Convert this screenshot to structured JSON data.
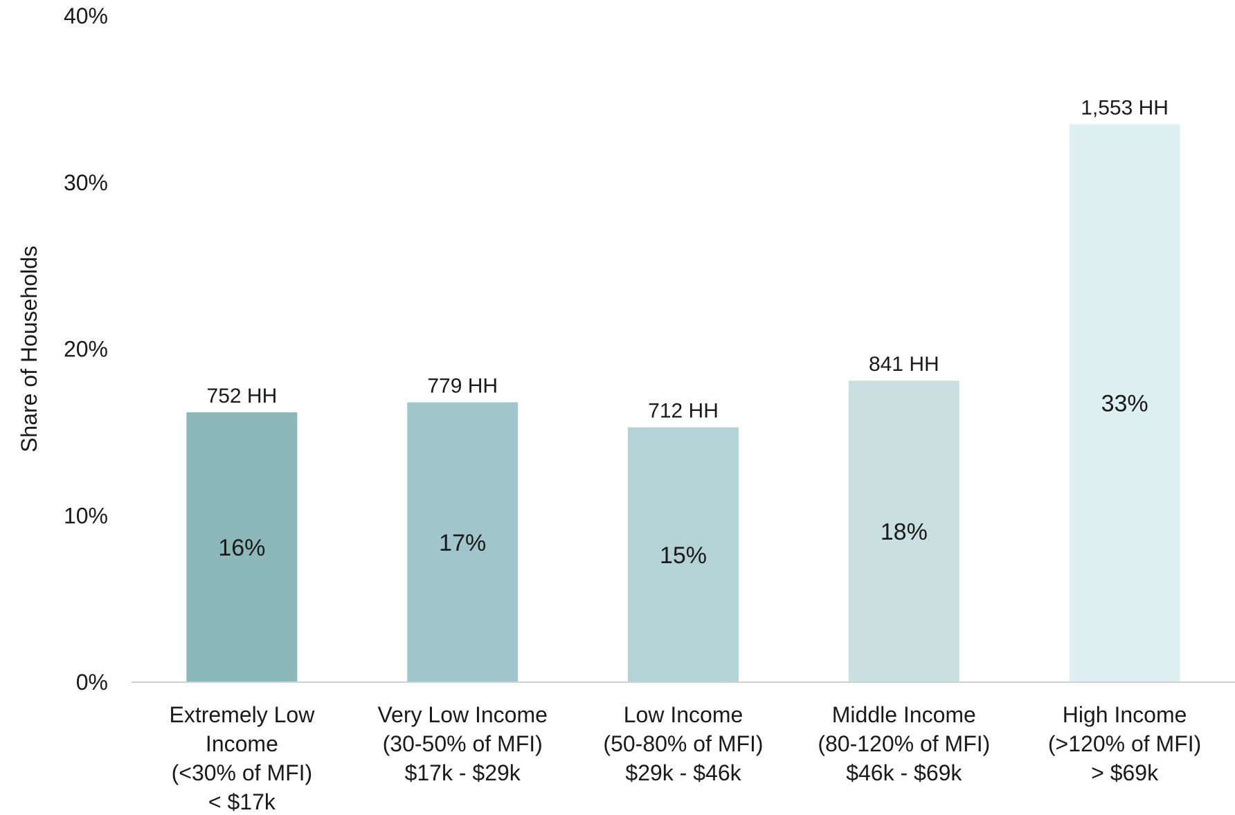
{
  "chart_data": {
    "type": "bar",
    "title": "",
    "xlabel": "",
    "ylabel": "Share of Households",
    "ylim": [
      0,
      40
    ],
    "yticks": [
      "0%",
      "10%",
      "20%",
      "30%",
      "40%"
    ],
    "ytick_values": [
      0,
      10,
      20,
      30,
      40
    ],
    "grid": false,
    "legend": "none",
    "categories": [
      [
        "Extremely Low",
        "Income",
        "(<30% of MFI)",
        "< $17k"
      ],
      [
        "Very Low Income",
        "(30-50% of MFI)",
        "$17k - $29k"
      ],
      [
        "Low Income",
        "(50-80% of MFI)",
        "$29k - $46k"
      ],
      [
        "Middle Income",
        "(80-120% of MFI)",
        "$46k - $69k"
      ],
      [
        "High Income",
        "(>120% of MFI)",
        "> $69k"
      ]
    ],
    "values": [
      16.2,
      16.8,
      15.3,
      18.1,
      33.5
    ],
    "value_labels": [
      "16%",
      "17%",
      "15%",
      "18%",
      "33%"
    ],
    "household_labels": [
      "752 HH",
      "779 HH",
      "712 HH",
      "841 HH",
      "1,553 HH"
    ],
    "colors": [
      "#8db8ba",
      "#a0c5ca",
      "#b5d3d6",
      "#c9dfe0",
      "#ddeff0"
    ],
    "axis_color": "#d0d0d0"
  }
}
